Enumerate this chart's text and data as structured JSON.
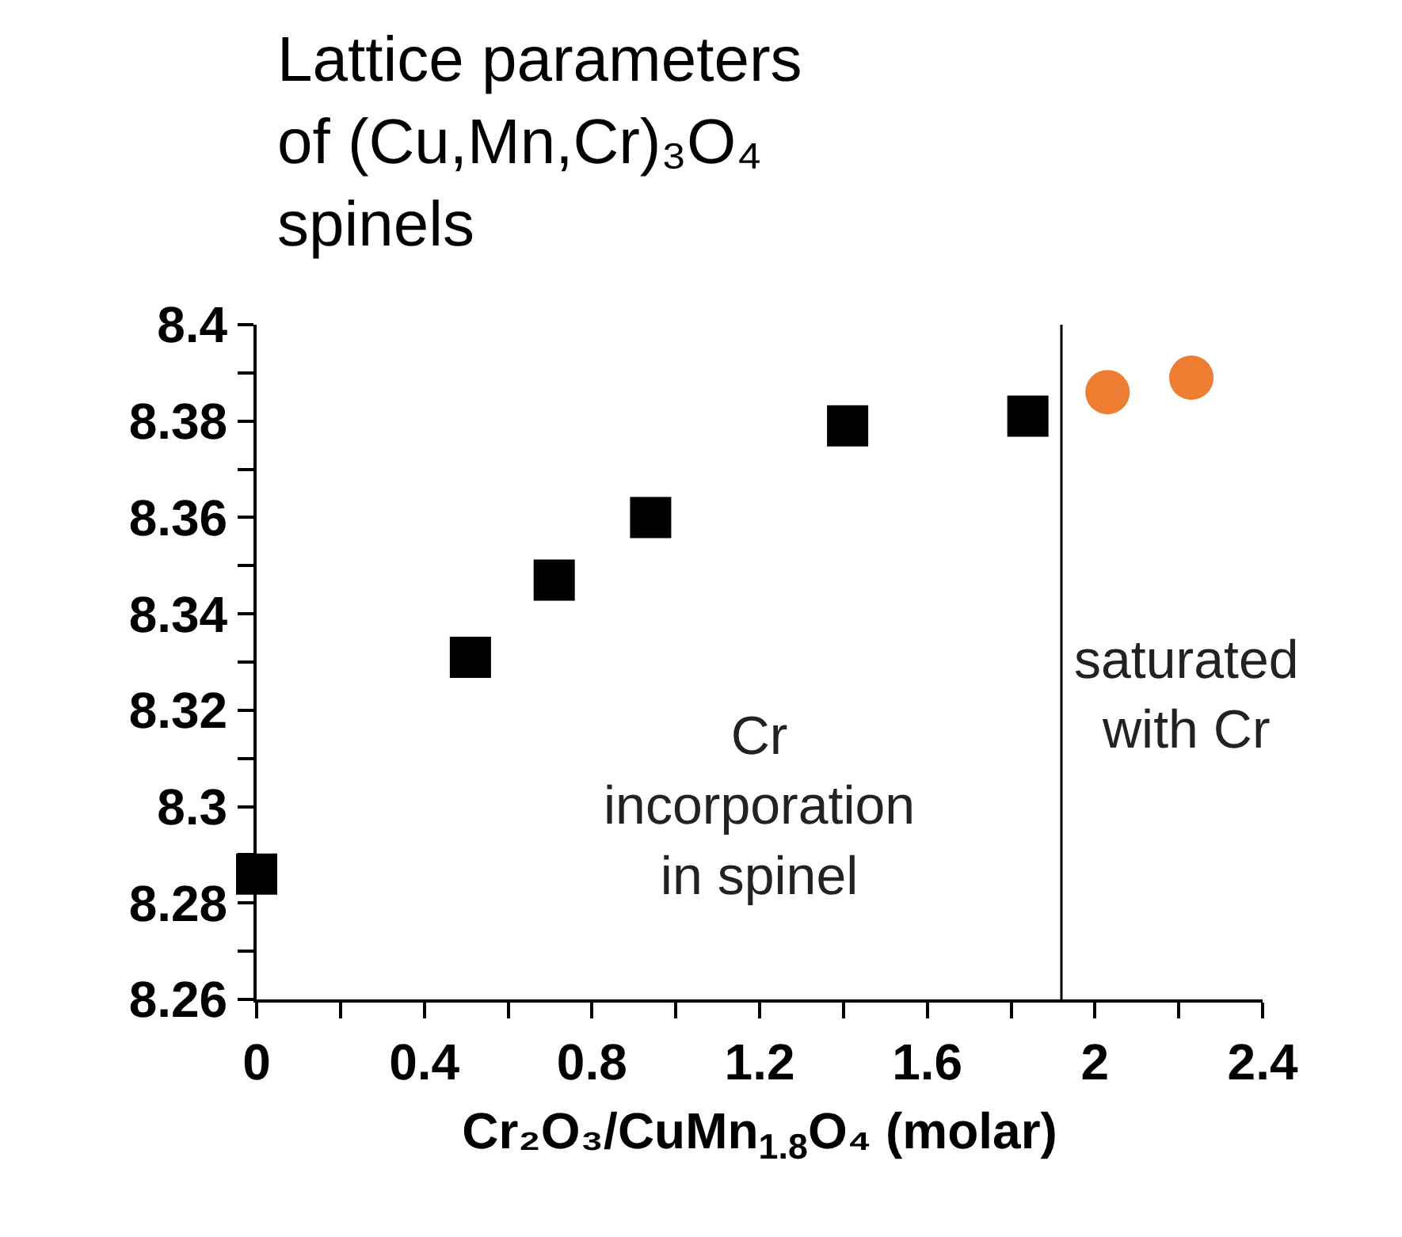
{
  "chart_data": {
    "type": "scatter",
    "title": "Lattice parameters\nof (Cu,Mn,Cr)₃O₄\nspinels",
    "xlabel": "Cr₂O₃/CuMn$_{1.8}$O₄ (molar)",
    "xlim": [
      0,
      2.4
    ],
    "xticks": [
      0,
      {
        "value": 0.2,
        "label": null
      },
      0.4,
      {
        "value": 0.6,
        "label": null
      },
      0.8,
      {
        "value": 1.0,
        "label": null
      },
      1.2,
      {
        "value": 1.4,
        "label": null
      },
      1.6,
      {
        "value": 1.8,
        "label": null
      },
      2,
      {
        "value": 2.2,
        "label": null
      },
      2.4
    ],
    "ylim": [
      8.26,
      8.4
    ],
    "yticks": [
      8.26,
      {
        "value": 8.27,
        "label": null
      },
      8.28,
      {
        "value": 8.29,
        "label": null
      },
      8.3,
      {
        "value": 8.31,
        "label": null
      },
      8.32,
      {
        "value": 8.33,
        "label": null
      },
      8.34,
      {
        "value": 8.35,
        "label": null
      },
      8.36,
      {
        "value": 8.37,
        "label": null
      },
      8.38,
      {
        "value": 8.39,
        "label": null
      },
      8.4
    ],
    "series": [
      {
        "color": "#000000",
        "marker": "square",
        "x": [
          0,
          0.51,
          0.71,
          0.94,
          1.41,
          1.84
        ],
        "values": [
          8.286,
          8.331,
          8.347,
          8.36,
          8.379,
          8.381
        ]
      },
      {
        "color": "#ed7d31",
        "marker": "circle",
        "x": [
          2.03,
          2.23
        ],
        "values": [
          8.386,
          8.389
        ]
      }
    ],
    "ref_lines": [
      {
        "axis": "x",
        "value": 1.92,
        "color": "#000000"
      }
    ],
    "annotations": [
      "Cr\nincorporation\nin spinel",
      "saturated\nwith Cr"
    ]
  }
}
